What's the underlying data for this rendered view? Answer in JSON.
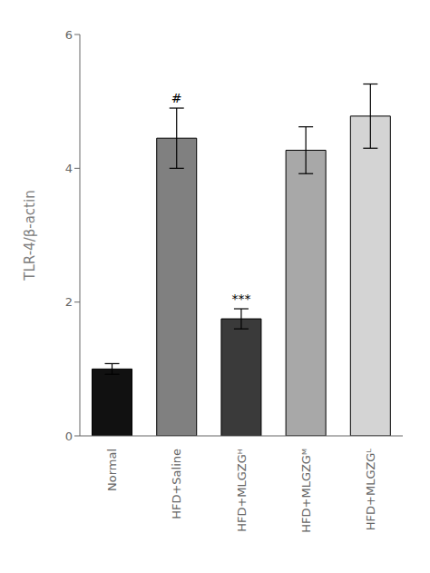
{
  "chart_data": {
    "type": "bar",
    "categories": [
      "Normal",
      "HFD+Saline",
      "HFD+MLGZGᴴ",
      "HFD+MLGZGᴹ",
      "HFD+MLGZGᴸ"
    ],
    "values": [
      1.0,
      4.45,
      1.75,
      4.27,
      4.78
    ],
    "errors": [
      0.08,
      0.45,
      0.15,
      0.35,
      0.48
    ],
    "colors": [
      "#111111",
      "#808080",
      "#3a3a3a",
      "#a8a8a8",
      "#d4d4d4"
    ],
    "ylabel": "TLR-4/β-actin",
    "ylim": [
      0,
      6
    ],
    "yticks": [
      0,
      2,
      4,
      6
    ],
    "annotations": [
      {
        "category": "HFD+Saline",
        "text": "#"
      },
      {
        "category": "HFD+MLGZGᴴ",
        "text": "***"
      }
    ]
  }
}
